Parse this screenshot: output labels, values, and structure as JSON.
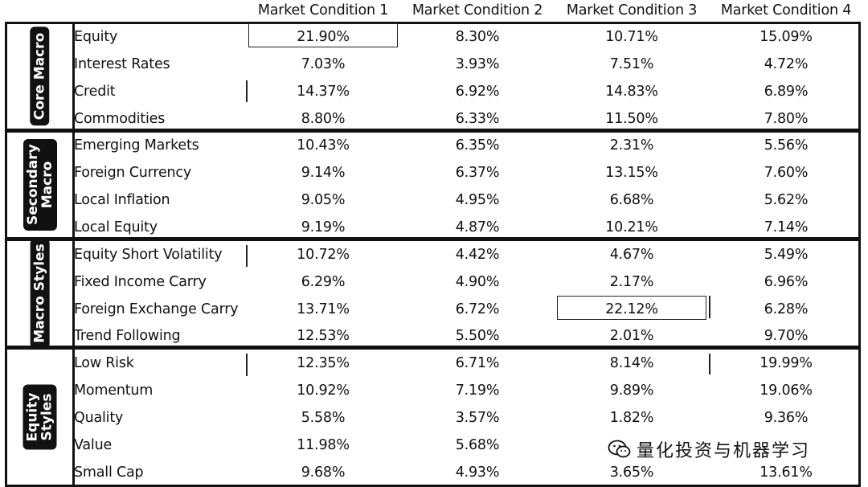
{
  "chart_data": {
    "type": "table",
    "columns": [
      "Market Condition 1",
      "Market Condition 2",
      "Market Condition 3",
      "Market Condition 4"
    ],
    "groups": [
      {
        "label": "Core Macro",
        "rows": [
          {
            "name": "Equity",
            "values": [
              "21.90%",
              "8.30%",
              "10.71%",
              "15.09%"
            ]
          },
          {
            "name": "Interest Rates",
            "values": [
              "7.03%",
              "3.93%",
              "7.51%",
              "4.72%"
            ]
          },
          {
            "name": "Credit",
            "values": [
              "14.37%",
              "6.92%",
              "14.83%",
              "6.89%"
            ]
          },
          {
            "name": "Commodities",
            "values": [
              "8.80%",
              "6.33%",
              "11.50%",
              "7.80%"
            ]
          }
        ]
      },
      {
        "label": "Secondary Macro",
        "rows": [
          {
            "name": "Emerging Markets",
            "values": [
              "10.43%",
              "6.35%",
              "2.31%",
              "5.56%"
            ]
          },
          {
            "name": "Foreign Currency",
            "values": [
              "9.14%",
              "6.37%",
              "13.15%",
              "7.60%"
            ]
          },
          {
            "name": "Local Inflation",
            "values": [
              "9.05%",
              "4.95%",
              "6.68%",
              "5.62%"
            ]
          },
          {
            "name": "Local Equity",
            "values": [
              "9.19%",
              "4.87%",
              "10.21%",
              "7.14%"
            ]
          }
        ]
      },
      {
        "label": "Macro Styles",
        "rows": [
          {
            "name": "Equity Short Volatility",
            "values": [
              "10.72%",
              "4.42%",
              "4.67%",
              "5.49%"
            ]
          },
          {
            "name": "Fixed Income Carry",
            "values": [
              "6.29%",
              "4.90%",
              "2.17%",
              "6.96%"
            ]
          },
          {
            "name": "Foreign Exchange Carry",
            "values": [
              "13.71%",
              "6.72%",
              "22.12%",
              "6.28%"
            ]
          },
          {
            "name": "Trend Following",
            "values": [
              "12.53%",
              "5.50%",
              "2.01%",
              "9.70%"
            ]
          }
        ]
      },
      {
        "label": "Equity Styles",
        "rows": [
          {
            "name": "Low Risk",
            "values": [
              "12.35%",
              "6.71%",
              "8.14%",
              "19.99%"
            ]
          },
          {
            "name": "Momentum",
            "values": [
              "10.92%",
              "7.19%",
              "9.89%",
              "19.06%"
            ]
          },
          {
            "name": "Quality",
            "values": [
              "5.58%",
              "3.57%",
              "1.82%",
              "9.36%"
            ]
          },
          {
            "name": "Value",
            "values": [
              "11.98%",
              "5.68%",
              "",
              ""
            ]
          },
          {
            "name": "Small Cap",
            "values": [
              "9.68%",
              "4.93%",
              "3.65%",
              "13.61%"
            ]
          }
        ]
      }
    ],
    "highlighted": [
      {
        "row": "Equity",
        "column": "Market Condition 1"
      },
      {
        "row": "Foreign Exchange Carry",
        "column": "Market Condition 3"
      }
    ]
  },
  "watermark": {
    "text": "量化投资与机器学习",
    "icon": "wechat-icon"
  }
}
